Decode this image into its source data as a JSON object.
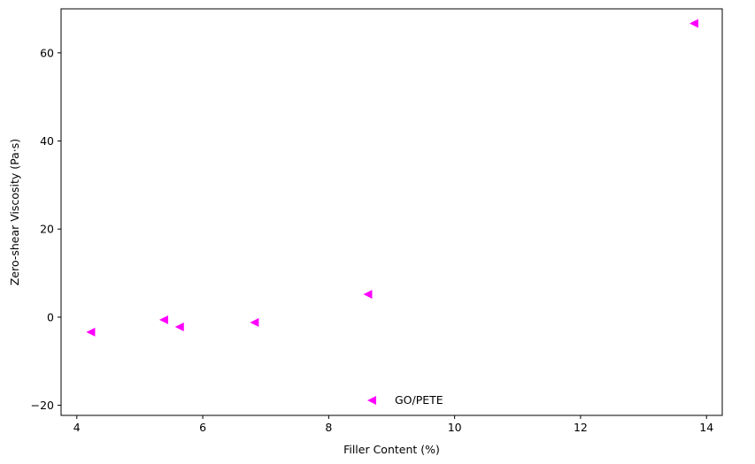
{
  "chart_data": {
    "type": "scatter",
    "xlabel": "Filler Content (%)",
    "ylabel": "Zero-shear Viscosity (Pa·s)",
    "xlim": [
      3.75,
      14.25
    ],
    "ylim": [
      -22.3,
      70.0
    ],
    "x_ticks": [
      4,
      6,
      8,
      10,
      12,
      14
    ],
    "y_ticks": [
      -20,
      0,
      20,
      40,
      60
    ],
    "grid": false,
    "legend": "in-plot, lower-center",
    "series": [
      {
        "name": "GO/PETE",
        "color": "#ff00ff",
        "marker": "triangle-left",
        "points": [
          {
            "x": 4.22,
            "y": -3.4
          },
          {
            "x": 5.38,
            "y": -0.6
          },
          {
            "x": 5.63,
            "y": -2.2
          },
          {
            "x": 6.82,
            "y": -1.2
          },
          {
            "x": 8.62,
            "y": 5.2
          },
          {
            "x": 13.8,
            "y": 66.7
          }
        ]
      }
    ]
  }
}
